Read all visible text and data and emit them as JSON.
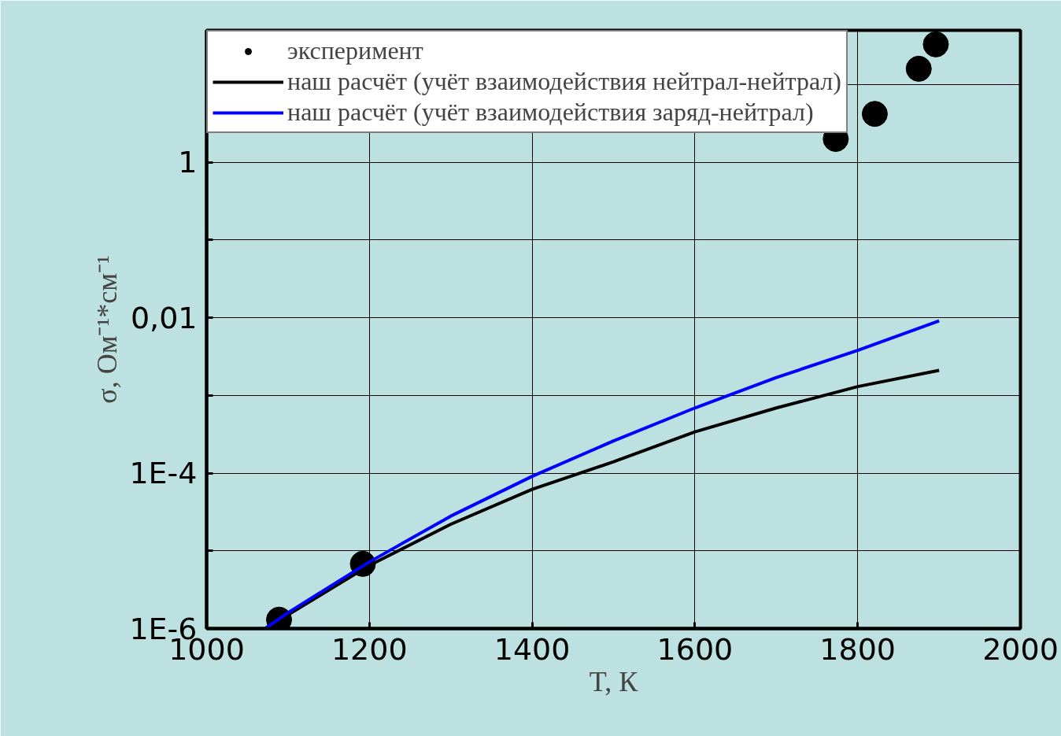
{
  "chart_data": {
    "type": "line",
    "xlabel": "T, К",
    "ylabel": "σ, Ом⁻¹*см⁻¹",
    "log": "y",
    "grid": true,
    "legend": "top left",
    "xlim": [
      1000,
      2000
    ],
    "xticks": [
      1000,
      1200,
      1400,
      1600,
      1800,
      2000
    ],
    "ylim": [
      1e-06,
      50
    ],
    "yticks": [
      {
        "value": 1e-06,
        "label": "1E-6"
      },
      {
        "value": 1e-05,
        "label": null
      },
      {
        "value": 0.0001,
        "label": "1E-4"
      },
      {
        "value": 0.001,
        "label": null
      },
      {
        "value": 0.01,
        "label": "0,01"
      },
      {
        "value": 0.1,
        "label": null
      },
      {
        "value": 1,
        "label": "1"
      },
      {
        "value": 10,
        "label": null
      }
    ],
    "series": [
      {
        "name": "эксперимент",
        "type": "scatter",
        "marker": "circle",
        "color": "#000000",
        "x": [
          1089,
          1192,
          1773,
          1821,
          1875,
          1896
        ],
        "values": [
          1.3e-06,
          6.8e-06,
          2.0,
          4.2,
          16,
          33
        ]
      },
      {
        "name": "наш расчёт (учёт взаимодействия нейтрал-нейтрал)",
        "color": "#000000",
        "x": [
          1072,
          1100,
          1200,
          1300,
          1400,
          1500,
          1600,
          1700,
          1800,
          1900
        ],
        "values": [
          1e-06,
          1.5e-06,
          6.5e-06,
          2.2e-05,
          6.2e-05,
          0.00014,
          0.00034,
          0.00069,
          0.0013,
          0.0021
        ]
      },
      {
        "name": "наш расчёт (учёт взаимодействия заряд-нейтрал)",
        "color": "#0000ff",
        "x": [
          1072,
          1100,
          1200,
          1300,
          1400,
          1500,
          1600,
          1700,
          1800,
          1900
        ],
        "values": [
          1e-06,
          1.6e-06,
          7.2e-06,
          2.8e-05,
          9.1e-05,
          0.00026,
          0.00069,
          0.0017,
          0.0038,
          0.0091
        ]
      }
    ]
  }
}
